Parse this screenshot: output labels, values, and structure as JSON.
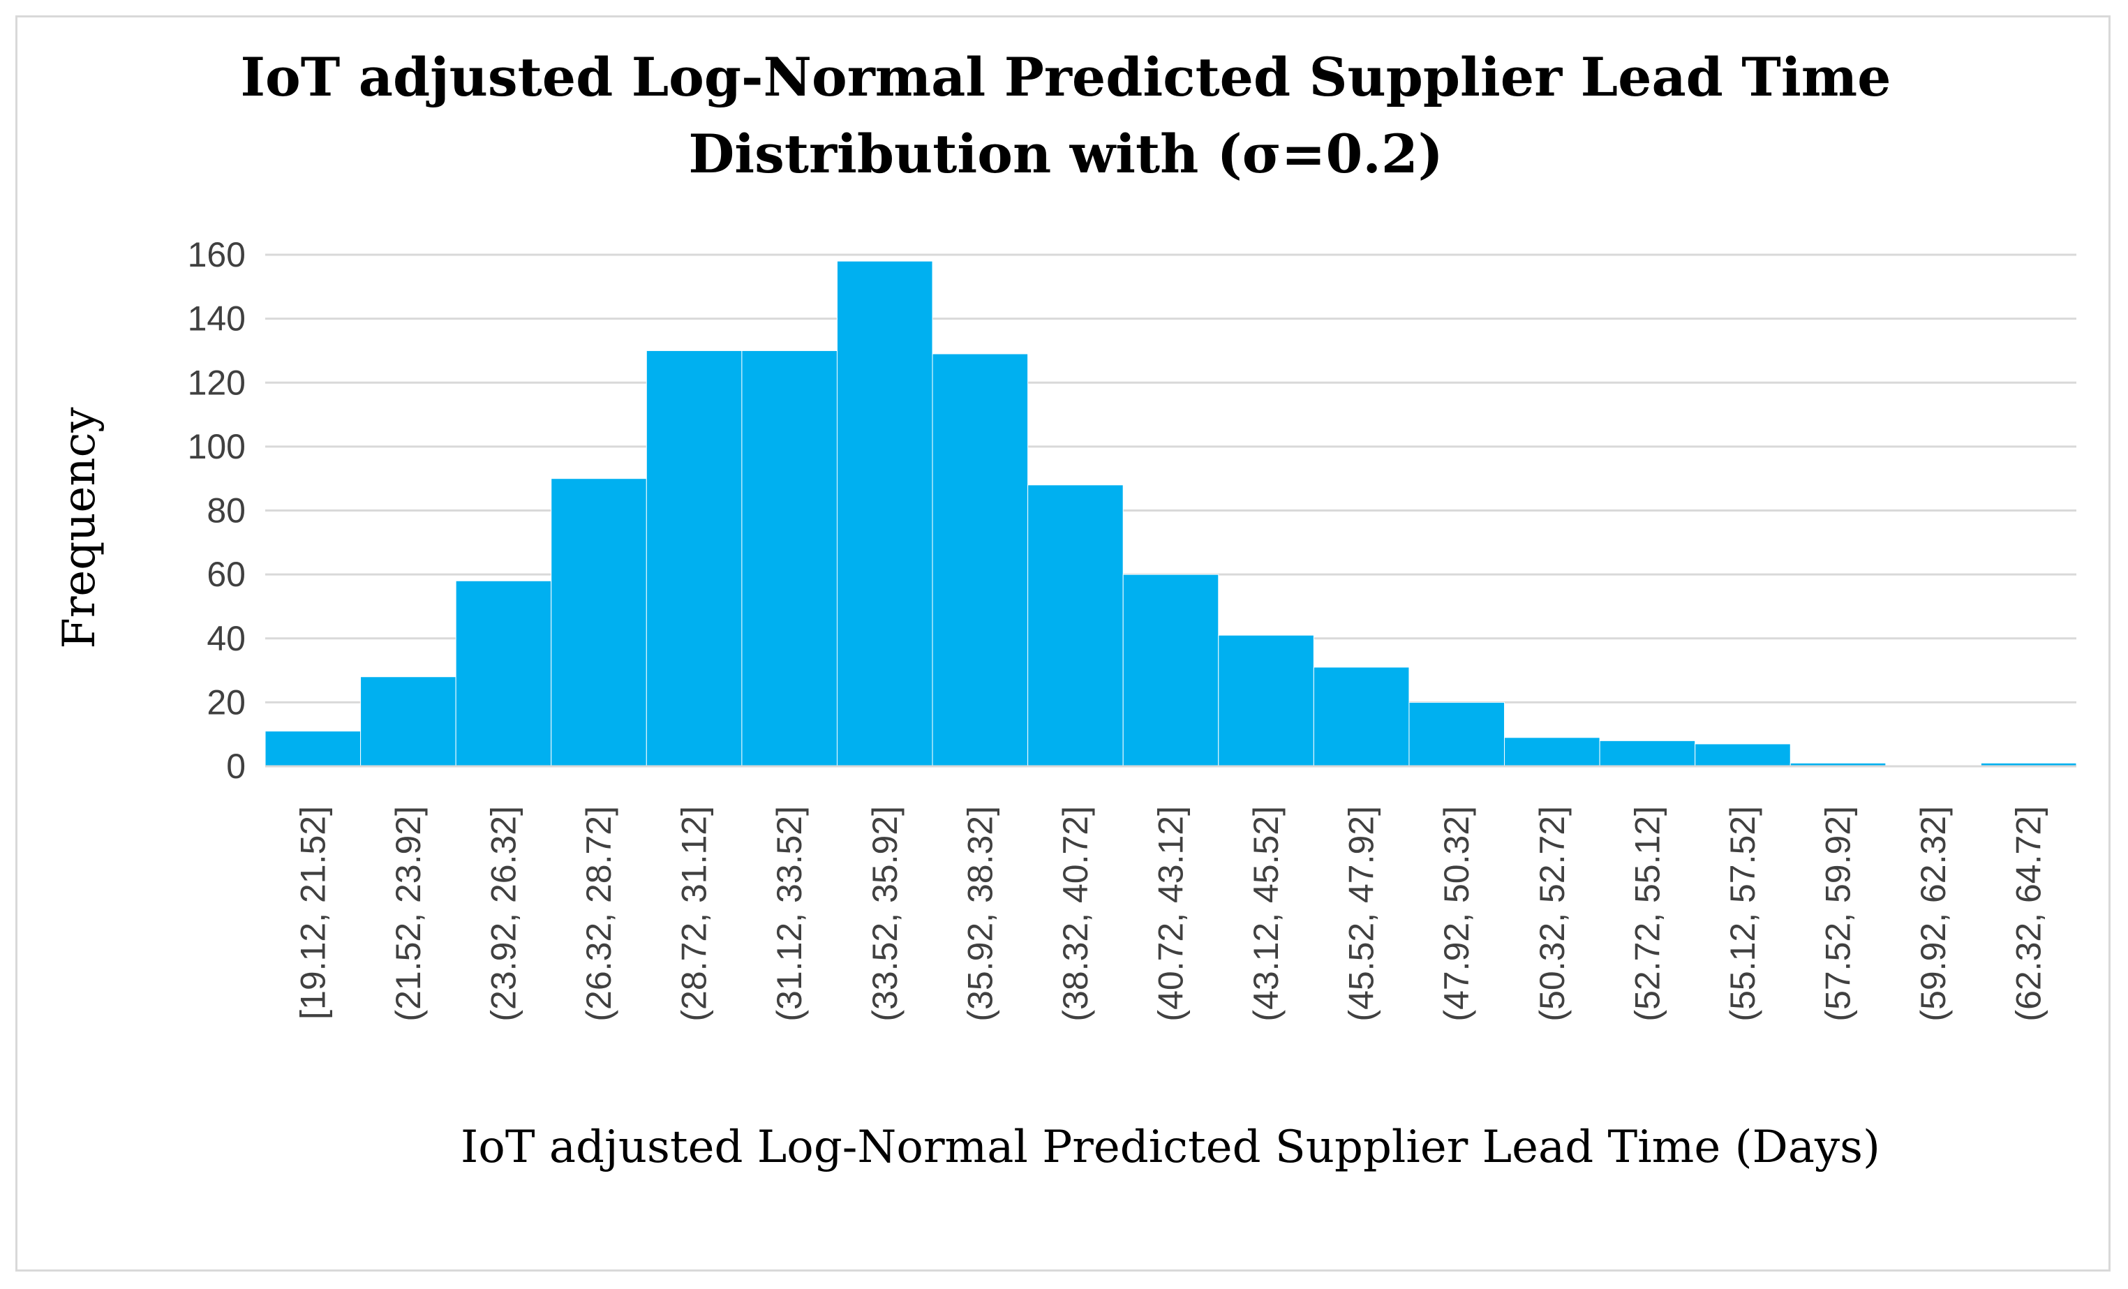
{
  "chart_data": {
    "type": "bar",
    "title_lines": [
      "IoT adjusted Log-Normal Predicted Supplier Lead Time",
      "Distribution with (σ=0.2)"
    ],
    "xlabel": "IoT adjusted Log-Normal Predicted Supplier Lead Time (Days)",
    "ylabel": "Frequency",
    "ylim": [
      0,
      160
    ],
    "yticks": [
      "0",
      "20",
      "40",
      "60",
      "80",
      "100",
      "120",
      "140",
      "160"
    ],
    "grid": true,
    "legend": "none",
    "bar_color": "#00b0f0",
    "categories": [
      "[19.12, 21.52]",
      "(21.52, 23.92]",
      "(23.92, 26.32]",
      "(26.32, 28.72]",
      "(28.72, 31.12]",
      "(31.12, 33.52]",
      "(33.52, 35.92]",
      "(35.92, 38.32]",
      "(38.32, 40.72]",
      "(40.72, 43.12]",
      "(43.12, 45.52]",
      "(45.52, 47.92]",
      "(47.92, 50.32]",
      "(50.32, 52.72]",
      "(52.72, 55.12]",
      "(55.12, 57.52]",
      "(57.52, 59.92]",
      "(59.92, 62.32]",
      "(62.32, 64.72]"
    ],
    "values": [
      11,
      28,
      58,
      90,
      130,
      130,
      158,
      129,
      88,
      60,
      41,
      31,
      20,
      9,
      8,
      7,
      1,
      0,
      1
    ]
  }
}
